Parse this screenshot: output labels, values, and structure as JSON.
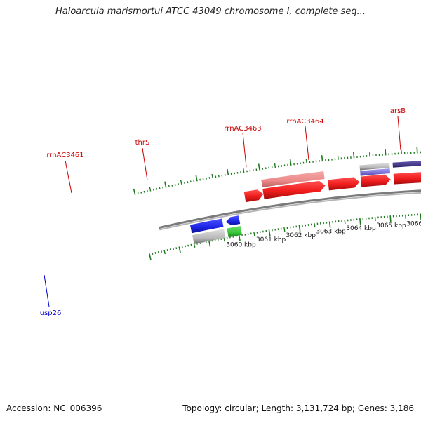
{
  "title": "Haloarcula marismortui ATCC 43049 chromosome I, complete seq...",
  "footer": {
    "accession_label": "Accession:",
    "accession": "NC_006396",
    "topology_label": "Topology:",
    "topology": "circular",
    "length_label": "Length:",
    "length": "3,131,724 bp",
    "genes_label": "Genes:",
    "genes": "3,186"
  },
  "colors": {
    "forward_gene": "#f01c1c",
    "forward_gene_light": "#f09090",
    "reverse_gene": "#1c24e6",
    "rna_or_other": "#b8b8b8",
    "green_gene": "#36c436",
    "purple_gene": "#483c8c",
    "light_purple_gene": "#7a70d6",
    "backbone": "#8a8a8a",
    "tick": "#1f7a1f",
    "forward_label": "#cc0000",
    "reverse_label": "#0000cc"
  },
  "scale": {
    "ticks": [
      "3060 kbp",
      "3061 kbp",
      "3062 kbp",
      "3063 kbp",
      "3064 kbp",
      "3065 kbp",
      "3066 kbp"
    ]
  },
  "genes": [
    {
      "label": "rrnAC3461",
      "strand": "forward",
      "color": "forward_gene"
    },
    {
      "label": "thrS",
      "strand": "forward",
      "color": "forward_gene"
    },
    {
      "label": "rrnAC3463",
      "strand": "forward",
      "color": "forward_gene"
    },
    {
      "label": "rrnAC3464",
      "strand": "forward",
      "color": "forward_gene"
    },
    {
      "label": "arsB",
      "strand": "forward",
      "color": "forward_gene"
    },
    {
      "label": "usp26",
      "strand": "reverse",
      "color": "green_gene"
    }
  ],
  "features": [
    {
      "track": "forward-inner",
      "color": "forward_gene",
      "direction": "right",
      "start": 3060.4,
      "end": 3061.0
    },
    {
      "track": "forward-inner",
      "color": "forward_gene",
      "direction": "right",
      "start": 3061.0,
      "end": 3063.0
    },
    {
      "track": "forward-inner",
      "color": "forward_gene",
      "direction": "right",
      "start": 3063.1,
      "end": 3064.1
    },
    {
      "track": "forward-inner",
      "color": "forward_gene",
      "direction": "right",
      "start": 3064.15,
      "end": 3065.1
    },
    {
      "track": "forward-inner",
      "color": "forward_gene",
      "direction": "right",
      "start": 3065.2,
      "end": 3066.6
    },
    {
      "track": "forward-outer",
      "color": "forward_gene_light",
      "direction": "none",
      "start": 3061.0,
      "end": 3063.0
    },
    {
      "track": "forward-mid",
      "color": "light_purple_gene",
      "direction": "none",
      "start": 3064.15,
      "end": 3065.1
    },
    {
      "track": "forward-outer2",
      "color": "rna_or_other",
      "direction": "none",
      "start": 3064.15,
      "end": 3065.1
    },
    {
      "track": "forward-outer2",
      "color": "purple_gene",
      "direction": "none",
      "start": 3065.2,
      "end": 3066.6
    },
    {
      "track": "reverse-inner",
      "color": "reverse_gene",
      "direction": "none",
      "start": 3058.5,
      "end": 3059.55
    },
    {
      "track": "reverse-inner",
      "color": "reverse_gene",
      "direction": "left",
      "start": 3059.65,
      "end": 3060.1
    },
    {
      "track": "reverse-outer",
      "color": "rna_or_other",
      "direction": "none",
      "start": 3058.5,
      "end": 3059.55
    },
    {
      "track": "reverse-outer",
      "color": "green_gene",
      "direction": "none",
      "start": 3059.65,
      "end": 3060.1
    }
  ]
}
